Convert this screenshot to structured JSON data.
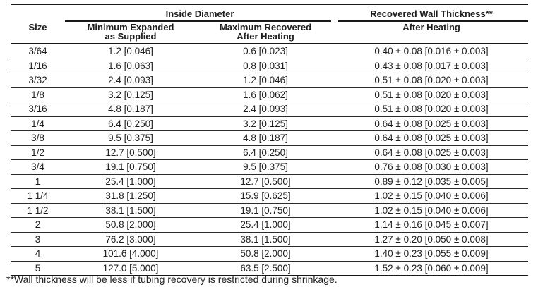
{
  "table": {
    "groups": {
      "inside_diameter": "Inside Diameter",
      "recovered_wall_thickness": "Recovered Wall Thickness**"
    },
    "columns": {
      "size": "Size",
      "min_expanded": "Minimum Expanded\nas Supplied",
      "max_recovered": "Maximum Recovered\nAfter Heating",
      "after_heating": "After Heating"
    },
    "rows": [
      [
        "3/64",
        "1.2 [0.046]",
        "0.6 [0.023]",
        "0.40 ± 0.08 [0.016 ± 0.003]"
      ],
      [
        "1/16",
        "1.6 [0.063]",
        "0.8 [0.031]",
        "0.43 ± 0.08 [0.017 ± 0.003]"
      ],
      [
        "3/32",
        "2.4 [0.093]",
        "1.2 [0.046]",
        "0.51 ± 0.08 [0.020 ± 0.003]"
      ],
      [
        "1/8",
        "3.2 [0.125]",
        "1.6 [0.062]",
        "0.51 ± 0.08 [0.020 ± 0.003]"
      ],
      [
        "3/16",
        "4.8 [0.187]",
        "2.4 [0.093]",
        "0.51 ± 0.08 [0.020 ± 0.003]"
      ],
      [
        "1/4",
        "6.4 [0.250]",
        "3.2 [0.125]",
        "0.64 ± 0.08 [0.025 ± 0.003]"
      ],
      [
        "3/8",
        "9.5 [0.375]",
        "4.8 [0.187]",
        "0.64 ± 0.08 [0.025 ± 0.003]"
      ],
      [
        "1/2",
        "12.7 [0.500]",
        "6.4 [0.250]",
        "0.64 ± 0.08 [0.025 ± 0.003]"
      ],
      [
        "3/4",
        "19.1 [0.750]",
        "9.5 [0.375]",
        "0.76 ± 0.08 [0.030 ± 0.003]"
      ],
      [
        "1",
        "25.4 [1.000]",
        "12.7 [0.500]",
        "0.89 ± 0.12 [0.035 ± 0.005]"
      ],
      [
        "1 1/4",
        "31.8 [1.250]",
        "15.9 [0.625]",
        "1.02 ± 0.15 [0.040 ± 0.006]"
      ],
      [
        "1 1/2",
        "38.1 [1.500]",
        "19.1 [0.750]",
        "1.02 ± 0.15 [0.040 ± 0.006]"
      ],
      [
        "2",
        "50.8 [2.000]",
        "25.4 [1.000]",
        "1.14 ± 0.16 [0.045 ± 0.007]"
      ],
      [
        "3",
        "76.2 [3.000]",
        "38.1 [1.500]",
        "1.27 ± 0.20 [0.050 ± 0.008]"
      ],
      [
        "4",
        "101.6 [4.000]",
        "50.8 [2.000]",
        "1.40 ± 0.23 [0.055 ± 0.009]"
      ],
      [
        "5",
        "127.0 [5.000]",
        "63.5 [2.500]",
        "1.52 ± 0.23 [0.060 ± 0.009]"
      ]
    ]
  },
  "footnote": "**Wall thickness will be less if tubing recovery is restricted during shrinkage.",
  "colors": {
    "text": "#1f1d1d",
    "rule_thick": "#1a1818",
    "rule_thin": "#2e2b2b",
    "background": "#ffffff"
  }
}
